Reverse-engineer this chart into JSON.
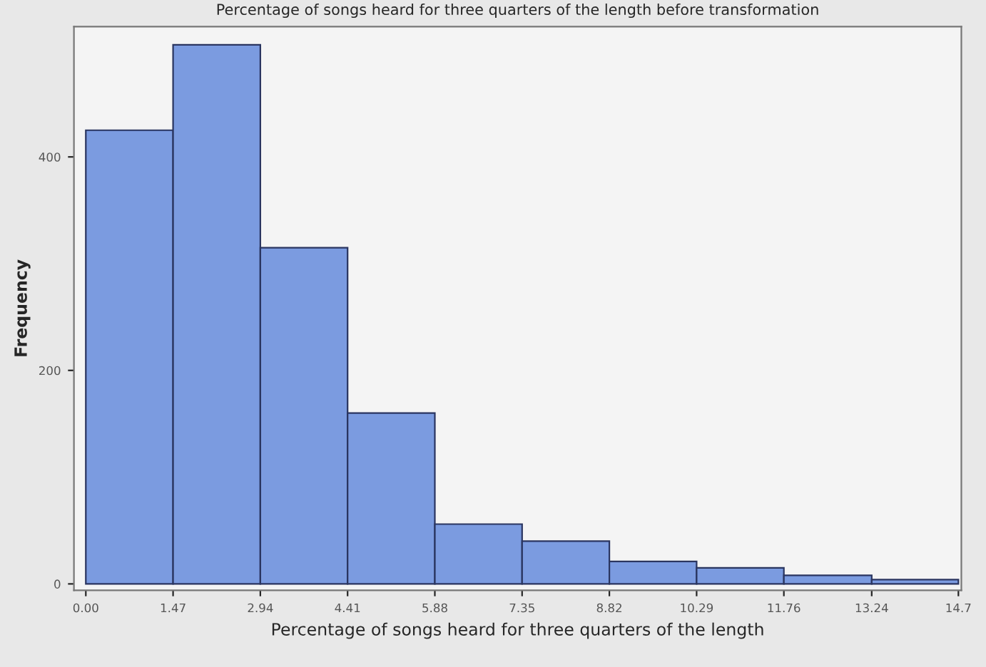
{
  "chart_data": {
    "type": "histogram",
    "title": "Percentage of songs heard for three quarters of the length before transformation",
    "xlabel": "Percentage of songs heard for three quarters of the length",
    "ylabel": "Frequency",
    "bins": [
      0,
      1.47,
      2.94,
      4.41,
      5.88,
      7.35,
      8.82,
      10.29,
      11.76,
      13.24,
      14.7
    ],
    "values": [
      425,
      505,
      315,
      160,
      56,
      40,
      21,
      15,
      8,
      4
    ],
    "color": "#7b9be0",
    "xlim": [
      -0.2,
      14.75
    ],
    "ylim": [
      -6,
      522
    ],
    "xticks": [
      {
        "value": 0,
        "label": "0.00"
      },
      1.47,
      2.94,
      4.41,
      5.88,
      7.35,
      8.82,
      10.29,
      11.76,
      13.24,
      14.7
    ],
    "yticks": [
      0,
      200,
      400
    ],
    "grid": false
  }
}
